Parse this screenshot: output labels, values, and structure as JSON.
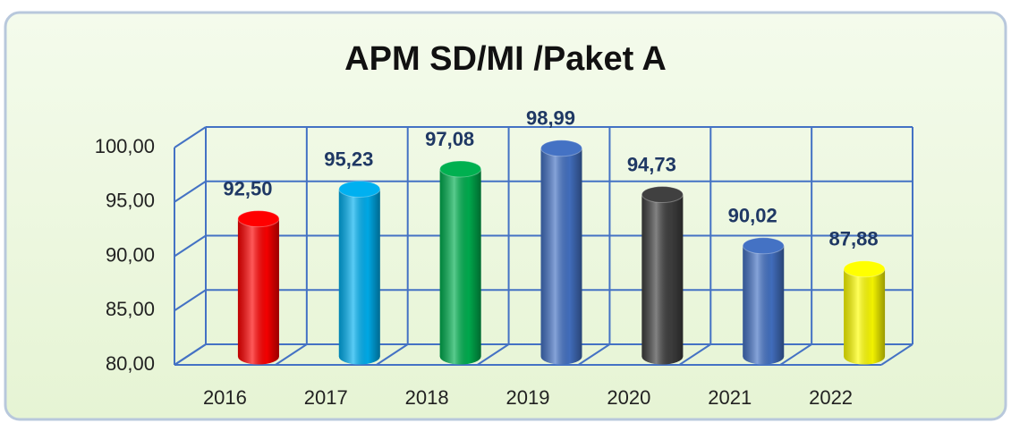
{
  "chart_data": {
    "type": "bar3d",
    "title": "APM SD/MI /Paket A",
    "categories": [
      "2016",
      "2017",
      "2018",
      "2019",
      "2020",
      "2021",
      "2022"
    ],
    "values": [
      92.5,
      95.23,
      97.08,
      98.99,
      94.73,
      90.02,
      87.88
    ],
    "value_labels": [
      "92,50",
      "95,23",
      "97,08",
      "98,99",
      "94,73",
      "90,02",
      "87,88"
    ],
    "colors": [
      "#ff0000",
      "#00b0f0",
      "#00b050",
      "#4472c4",
      "#404040",
      "#4472c4",
      "#ffff00"
    ],
    "ylim": [
      80,
      100
    ],
    "yticks": [
      {
        "value": 80,
        "label": "80,00"
      },
      {
        "value": 85,
        "label": "85,00"
      },
      {
        "value": 90,
        "label": "90,00"
      },
      {
        "value": 95,
        "label": "95,00"
      },
      {
        "value": 100,
        "label": "100,00"
      }
    ],
    "grid": true
  }
}
